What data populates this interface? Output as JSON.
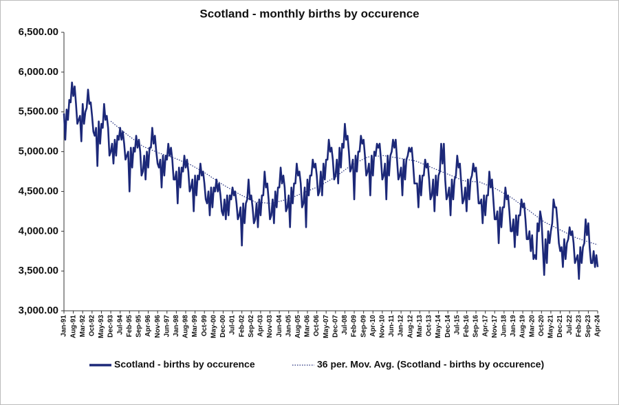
{
  "chart_data": {
    "type": "line",
    "title": "Scotland - monthly births by occurence",
    "categories": [
      "Jan-91",
      null,
      null,
      null,
      null,
      null,
      null,
      "Aug-91",
      null,
      null,
      null,
      null,
      null,
      null,
      "Mar-92",
      null,
      null,
      null,
      null,
      null,
      null,
      "Oct-92",
      null,
      null,
      null,
      null,
      null,
      null,
      "May-93",
      null,
      null,
      null,
      null,
      null,
      null,
      "Dec-93",
      null,
      null,
      null,
      null,
      null,
      null,
      "Jul-94",
      null,
      null,
      null,
      null,
      null,
      null,
      "Feb-95",
      null,
      null,
      null,
      null,
      null,
      null,
      "Sep-95",
      null,
      null,
      null,
      null,
      null,
      null,
      "Apr-96",
      null,
      null,
      null,
      null,
      null,
      null,
      "Nov-96",
      null,
      null,
      null,
      null,
      null,
      null,
      "Jun-97",
      null,
      null,
      null,
      null,
      null,
      null,
      "Jan-98",
      null,
      null,
      null,
      null,
      null,
      null,
      "Aug-98",
      null,
      null,
      null,
      null,
      null,
      null,
      "Mar-99",
      null,
      null,
      null,
      null,
      null,
      null,
      "Oct-99",
      null,
      null,
      null,
      null,
      null,
      null,
      "May-00",
      null,
      null,
      null,
      null,
      null,
      null,
      "Dec-00",
      null,
      null,
      null,
      null,
      null,
      null,
      "Jul-01",
      null,
      null,
      null,
      null,
      null,
      null,
      "Feb-02",
      null,
      null,
      null,
      null,
      null,
      null,
      "Sep-02",
      null,
      null,
      null,
      null,
      null,
      null,
      "Apr-03",
      null,
      null,
      null,
      null,
      null,
      null,
      "Nov-03",
      null,
      null,
      null,
      null,
      null,
      null,
      "Jun-04",
      null,
      null,
      null,
      null,
      null,
      null,
      "Jan-05",
      null,
      null,
      null,
      null,
      null,
      null,
      "Aug-05",
      null,
      null,
      null,
      null,
      null,
      null,
      "Mar-06",
      null,
      null,
      null,
      null,
      null,
      null,
      "Oct-06",
      null,
      null,
      null,
      null,
      null,
      null,
      "May-07",
      null,
      null,
      null,
      null,
      null,
      null,
      "Dec-07",
      null,
      null,
      null,
      null,
      null,
      null,
      "Jul-08",
      null,
      null,
      null,
      null,
      null,
      null,
      "Feb-09",
      null,
      null,
      null,
      null,
      null,
      null,
      "Sep-09",
      null,
      null,
      null,
      null,
      null,
      null,
      "Apr-10",
      null,
      null,
      null,
      null,
      null,
      null,
      "Nov-10",
      null,
      null,
      null,
      null,
      null,
      null,
      "Jun-11",
      null,
      null,
      null,
      null,
      null,
      null,
      "Jan-12",
      null,
      null,
      null,
      null,
      null,
      null,
      "Aug-12",
      null,
      null,
      null,
      null,
      null,
      null,
      "Mar-13",
      null,
      null,
      null,
      null,
      null,
      null,
      "Oct-13",
      null,
      null,
      null,
      null,
      null,
      null,
      "May-14",
      null,
      null,
      null,
      null,
      null,
      null,
      "Dec-14",
      null,
      null,
      null,
      null,
      null,
      null,
      "Jul-15",
      null,
      null,
      null,
      null,
      null,
      null,
      "Feb-16",
      null,
      null,
      null,
      null,
      null,
      null,
      "Sep-16",
      null,
      null,
      null,
      null,
      null,
      null,
      "Apr-17",
      null,
      null,
      null,
      null,
      null,
      null,
      "Nov-17",
      null,
      null,
      null,
      null,
      null,
      null,
      "Jun-18",
      null,
      null,
      null,
      null,
      null,
      null,
      "Jan-19",
      null,
      null,
      null,
      null,
      null,
      null,
      "Aug-19",
      null,
      null,
      null,
      null,
      null,
      null,
      "Mar-20",
      null,
      null,
      null,
      null,
      null,
      null,
      "Oct-20",
      null,
      null,
      null,
      null,
      null,
      null,
      "May-21",
      null,
      null,
      null,
      null,
      null,
      null,
      "Dec-21",
      null,
      null,
      null,
      null,
      null,
      null,
      "Jul-22",
      null,
      null,
      null,
      null,
      null,
      null,
      "Feb-23",
      null,
      null,
      null,
      null,
      null,
      null,
      "Sep-23",
      null,
      null,
      null,
      null,
      null,
      null,
      "Apr-24"
    ],
    "series": [
      {
        "name": "Scotland - births by occurence",
        "color": "#1c2878",
        "style": "solid",
        "values": [
          5480,
          5150,
          5530,
          5400,
          5650,
          5620,
          5870,
          5700,
          5820,
          5600,
          5350,
          5400,
          5450,
          5130,
          5600,
          5350,
          5500,
          5550,
          5780,
          5600,
          5620,
          5450,
          5250,
          5200,
          5300,
          4820,
          5380,
          5100,
          5350,
          5300,
          5600,
          5400,
          5450,
          5300,
          4950,
          5000,
          5100,
          4850,
          5150,
          4950,
          5200,
          5150,
          5300,
          5150,
          5250,
          5100,
          4900,
          4950,
          5000,
          4500,
          5050,
          4800,
          5050,
          5000,
          5200,
          5050,
          5150,
          5000,
          4700,
          4750,
          4950,
          4650,
          5000,
          4800,
          5050,
          5050,
          5300,
          5100,
          5200,
          5000,
          4850,
          4800,
          4900,
          4550,
          4950,
          4700,
          4950,
          4900,
          5100,
          4950,
          5050,
          4900,
          4650,
          4650,
          4750,
          4350,
          4800,
          4550,
          4800,
          4750,
          4950,
          4800,
          4900,
          4750,
          4500,
          4550,
          4650,
          4250,
          4700,
          4450,
          4700,
          4650,
          4850,
          4700,
          4750,
          4600,
          4400,
          4350,
          4500,
          4200,
          4550,
          4300,
          4550,
          4500,
          4650,
          4500,
          4600,
          4450,
          4250,
          4200,
          4400,
          4150,
          4450,
          4200,
          4450,
          4400,
          4550,
          4450,
          4500,
          4350,
          4150,
          4200,
          4300,
          3820,
          4350,
          4100,
          4350,
          4400,
          4650,
          4400,
          4450,
          4300,
          4100,
          4150,
          4350,
          4050,
          4400,
          4200,
          4450,
          4450,
          4750,
          4550,
          4600,
          4400,
          4150,
          4200,
          4400,
          4100,
          4500,
          4300,
          4550,
          4550,
          4800,
          4600,
          4700,
          4550,
          4250,
          4300,
          4450,
          4050,
          4550,
          4350,
          4600,
          4600,
          4850,
          4700,
          4750,
          4600,
          4300,
          4350,
          4550,
          4050,
          4650,
          4450,
          4700,
          4700,
          4900,
          4800,
          4850,
          4700,
          4450,
          4500,
          4750,
          4450,
          4850,
          4650,
          4900,
          4900,
          5150,
          5000,
          5050,
          4900,
          4650,
          4700,
          4900,
          4600,
          5050,
          4800,
          5100,
          5050,
          5350,
          5150,
          5200,
          5000,
          4750,
          4800,
          4900,
          4400,
          4950,
          4750,
          5000,
          5000,
          5200,
          5100,
          5150,
          4950,
          4700,
          4750,
          4850,
          4450,
          4950,
          4700,
          5000,
          4950,
          5100,
          5050,
          5100,
          4900,
          4650,
          4700,
          4850,
          4400,
          4950,
          4700,
          4950,
          5000,
          5150,
          5050,
          5150,
          4900,
          4650,
          4700,
          4800,
          4450,
          4900,
          4650,
          4900,
          4950,
          5050,
          5000,
          5050,
          4850,
          4600,
          4600,
          4600,
          4300,
          4700,
          4450,
          4700,
          4700,
          4900,
          4800,
          4850,
          4650,
          4400,
          4450,
          4650,
          4250,
          4700,
          4450,
          4700,
          4750,
          5100,
          4850,
          5100,
          4650,
          4400,
          4450,
          4550,
          4200,
          4650,
          4400,
          4650,
          4700,
          4950,
          4800,
          4850,
          4600,
          4350,
          4400,
          4550,
          4250,
          4650,
          4400,
          4650,
          4700,
          4850,
          4750,
          4800,
          4600,
          4350,
          4350,
          4400,
          4100,
          4450,
          4200,
          4450,
          4450,
          4750,
          4550,
          4650,
          4400,
          4150,
          4150,
          4250,
          3850,
          4300,
          4050,
          4300,
          4300,
          4550,
          4400,
          4450,
          4250,
          4000,
          4000,
          4150,
          3800,
          4200,
          3950,
          4200,
          4200,
          4400,
          4300,
          4350,
          4150,
          3900,
          3900,
          4000,
          3750,
          3950,
          3650,
          3700,
          3650,
          4100,
          4000,
          4250,
          4150,
          3800,
          3450,
          3900,
          3600,
          4000,
          3850,
          4000,
          4100,
          4400,
          4300,
          4300,
          4100,
          3850,
          3750,
          3800,
          3550,
          3900,
          3650,
          3850,
          3900,
          4050,
          3950,
          4000,
          3850,
          3600,
          3650,
          3700,
          3400,
          3800,
          3600,
          3800,
          3850,
          4150,
          3950,
          4100,
          3800,
          3600,
          3600,
          3750,
          3550,
          3700,
          3550
        ]
      },
      {
        "name": "36 per. Mov. Avg. (Scotland - births by occurence)",
        "color": "#1c2878",
        "style": "dotted",
        "values": [
          null,
          null,
          null,
          null,
          null,
          null,
          null,
          null,
          null,
          null,
          null,
          null,
          null,
          null,
          null,
          null,
          null,
          null,
          null,
          null,
          null,
          null,
          null,
          null,
          null,
          null,
          null,
          null,
          null,
          null,
          null,
          null,
          null,
          null,
          null,
          5383,
          5369,
          5355,
          5341,
          5328,
          5314,
          5300,
          5286,
          5272,
          5259,
          5245,
          5231,
          5217,
          5205,
          5192,
          5180,
          5167,
          5155,
          5142,
          5130,
          5117,
          5105,
          5092,
          5080,
          5067,
          5060,
          5053,
          5046,
          5039,
          5032,
          5025,
          5018,
          5011,
          5004,
          4997,
          4990,
          4983,
          4978,
          4972,
          4967,
          4961,
          4956,
          4950,
          4945,
          4939,
          4934,
          4928,
          4923,
          4917,
          4910,
          4903,
          4896,
          4889,
          4882,
          4875,
          4868,
          4861,
          4854,
          4847,
          4840,
          4833,
          4823,
          4814,
          4804,
          4794,
          4785,
          4775,
          4765,
          4756,
          4746,
          4736,
          4727,
          4717,
          4706,
          4695,
          4683,
          4672,
          4661,
          4650,
          4639,
          4628,
          4616,
          4605,
          4594,
          4583,
          4573,
          4564,
          4554,
          4544,
          4535,
          4525,
          4515,
          4506,
          4496,
          4486,
          4477,
          4467,
          4459,
          4450,
          4442,
          4434,
          4425,
          4417,
          4409,
          4400,
          4392,
          4384,
          4375,
          4367,
          4366,
          4364,
          4363,
          4361,
          4360,
          4358,
          4357,
          4356,
          4354,
          4353,
          4351,
          4350,
          4354,
          4358,
          4363,
          4367,
          4371,
          4375,
          4379,
          4383,
          4388,
          4392,
          4396,
          4400,
          4407,
          4414,
          4421,
          4428,
          4435,
          4442,
          4448,
          4455,
          4462,
          4469,
          4476,
          4483,
          4490,
          4497,
          4504,
          4511,
          4518,
          4525,
          4532,
          4539,
          4546,
          4553,
          4560,
          4567,
          4577,
          4586,
          4596,
          4606,
          4615,
          4625,
          4635,
          4644,
          4654,
          4664,
          4673,
          4683,
          4696,
          4708,
          4721,
          4733,
          4746,
          4758,
          4771,
          4783,
          4796,
          4808,
          4821,
          4833,
          4841,
          4850,
          4858,
          4866,
          4875,
          4883,
          4891,
          4900,
          4908,
          4916,
          4925,
          4933,
          4934,
          4936,
          4937,
          4939,
          4940,
          4942,
          4943,
          4944,
          4946,
          4947,
          4949,
          4950,
          4947,
          4945,
          4942,
          4939,
          4936,
          4934,
          4931,
          4928,
          4925,
          4923,
          4920,
          4917,
          4914,
          4911,
          4909,
          4906,
          4903,
          4900,
          4897,
          4894,
          4892,
          4889,
          4886,
          4883,
          4876,
          4869,
          4862,
          4855,
          4848,
          4842,
          4835,
          4828,
          4821,
          4814,
          4807,
          4800,
          4793,
          4786,
          4779,
          4772,
          4765,
          4759,
          4752,
          4745,
          4738,
          4731,
          4724,
          4717,
          4710,
          4703,
          4696,
          4689,
          4682,
          4675,
          4668,
          4661,
          4654,
          4647,
          4640,
          4633,
          4632,
          4630,
          4629,
          4628,
          4626,
          4625,
          4624,
          4622,
          4621,
          4620,
          4618,
          4617,
          4610,
          4603,
          4596,
          4589,
          4582,
          4575,
          4568,
          4561,
          4554,
          4547,
          4540,
          4533,
          4523,
          4514,
          4504,
          4494,
          4485,
          4475,
          4465,
          4456,
          4446,
          4436,
          4427,
          4417,
          4405,
          4392,
          4380,
          4367,
          4355,
          4342,
          4330,
          4317,
          4305,
          4292,
          4280,
          4267,
          4255,
          4242,
          4230,
          4217,
          4205,
          4192,
          4180,
          4167,
          4155,
          4142,
          4130,
          4117,
          4109,
          4100,
          4092,
          4084,
          4075,
          4067,
          4059,
          4050,
          4042,
          4034,
          4025,
          4017,
          4009,
          4000,
          3992,
          3984,
          3975,
          3967,
          3959,
          3950,
          3942,
          3934,
          3925,
          3917,
          3911,
          3906,
          3900,
          3894,
          3889,
          3883,
          3878,
          3872,
          3867,
          3861,
          3856,
          3850,
          3845,
          3840,
          3835,
          3830
        ]
      }
    ],
    "ylim": [
      3000,
      6500
    ],
    "yticks": [
      {
        "value": 3000,
        "label": "3,000.00"
      },
      {
        "value": 3500,
        "label": "3,500.00"
      },
      {
        "value": 4000,
        "label": "4,000.00"
      },
      {
        "value": 4500,
        "label": "4,500.00"
      },
      {
        "value": 5000,
        "label": "5,000.00"
      },
      {
        "value": 5500,
        "label": "5,500.00"
      },
      {
        "value": 6000,
        "label": "6,000.00"
      },
      {
        "value": 6500,
        "label": "6,500.00"
      }
    ],
    "grid": false,
    "legend": "bottom"
  }
}
